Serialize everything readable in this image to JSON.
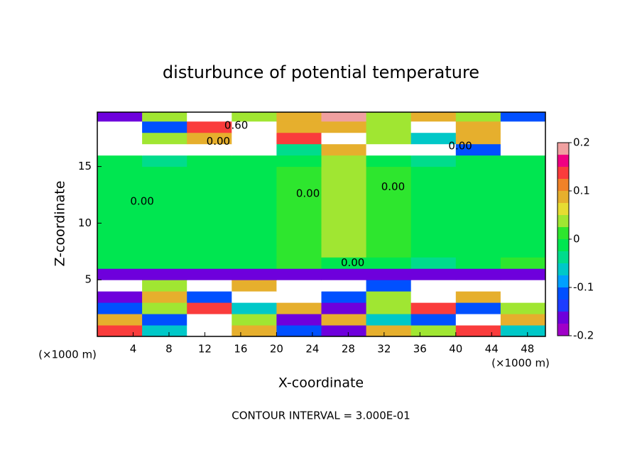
{
  "chart_data": {
    "type": "heatmap",
    "title": "disturbunce of potential temperature",
    "xlabel": "X-coordinate",
    "ylabel": "Z-coordinate",
    "xunit": "(×1000 m)",
    "note": "CONTOUR INTERVAL = 3.000E-01",
    "xlim": [
      0,
      50
    ],
    "ylim": [
      0,
      19.8
    ],
    "xticks": [
      4,
      8,
      12,
      16,
      20,
      24,
      28,
      32,
      36,
      40,
      44,
      48
    ],
    "yticks": [
      5,
      10,
      15
    ],
    "x": [
      2.5,
      7.5,
      12.5,
      17.5,
      22.5,
      27.5,
      32.5,
      37.5,
      42.5,
      47.5
    ],
    "y": [
      0.5,
      1.5,
      2.5,
      3.5,
      4.5,
      5.5,
      6.5,
      7.5,
      8.5,
      9.5,
      10.5,
      11.5,
      12.5,
      13.5,
      14.5,
      15.5,
      16.5,
      17.5,
      18.5,
      19.5
    ],
    "values": [
      [
        0.15,
        -0.05,
        0.25,
        0.1,
        -0.1,
        -0.15,
        0.1,
        0.05,
        0.15,
        -0.05
      ],
      [
        0.1,
        -0.1,
        0.25,
        0.05,
        -0.15,
        0.1,
        -0.05,
        -0.1,
        0.25,
        0.1
      ],
      [
        -0.1,
        0.05,
        0.15,
        -0.05,
        0.1,
        -0.15,
        0.05,
        0.15,
        -0.1,
        0.05
      ],
      [
        -0.15,
        0.1,
        -0.1,
        0.25,
        -0.25,
        -0.1,
        0.05,
        -0.25,
        0.1,
        -0.25
      ],
      [
        -0.25,
        0.05,
        -0.25,
        0.1,
        -0.25,
        -0.25,
        -0.1,
        -0.25,
        -0.25,
        -0.25
      ],
      [
        -0.17,
        -0.17,
        -0.17,
        -0.17,
        -0.17,
        -0.17,
        -0.17,
        -0.17,
        -0.17,
        -0.17
      ],
      [
        0,
        0,
        0,
        0,
        0.02,
        0,
        0,
        -0.03,
        0,
        0.02
      ],
      [
        0,
        0,
        0,
        0,
        0.02,
        0.03,
        0.02,
        0,
        0,
        0
      ],
      [
        0,
        0,
        0,
        0,
        0.02,
        0.03,
        0.02,
        0,
        0,
        0
      ],
      [
        0,
        0,
        0,
        0,
        0.02,
        0.03,
        0.02,
        0,
        0,
        0
      ],
      [
        0,
        0,
        0,
        0,
        0.02,
        0.03,
        0.02,
        0,
        0,
        0
      ],
      [
        0,
        0,
        0,
        0,
        0.02,
        0.03,
        0.02,
        0,
        0,
        0
      ],
      [
        0,
        0,
        0,
        0,
        0.02,
        0.03,
        0.02,
        0,
        0,
        0
      ],
      [
        0,
        0,
        0,
        0,
        0.02,
        0.03,
        0.02,
        0,
        0,
        0
      ],
      [
        0,
        0,
        0,
        0,
        0.02,
        0.03,
        0.02,
        0,
        0,
        0
      ],
      [
        0,
        -0.03,
        0,
        0,
        0,
        0.03,
        0,
        -0.03,
        0,
        0
      ],
      [
        0.25,
        0.25,
        0.25,
        0.25,
        -0.03,
        0.1,
        0.25,
        0.25,
        -0.1,
        0.25
      ],
      [
        -0.25,
        0.05,
        0.1,
        0.25,
        0.15,
        0.25,
        0.05,
        -0.05,
        0.1,
        -0.25
      ],
      [
        -0.25,
        -0.1,
        0.15,
        0.25,
        0.1,
        0.1,
        0.05,
        0.25,
        0.1,
        -0.25
      ],
      [
        -0.15,
        0.05,
        0.25,
        0.05,
        0.1,
        0.2,
        0.05,
        0.1,
        0.05,
        -0.1
      ]
    ],
    "colorbar": {
      "levels": [
        -0.2,
        -0.175,
        -0.15,
        -0.125,
        -0.1,
        -0.075,
        -0.05,
        -0.025,
        0,
        0.025,
        0.05,
        0.075,
        0.1,
        0.125,
        0.15,
        0.175,
        0.2
      ],
      "colors": [
        "#a000c8",
        "#6e00dc",
        "#1e3cff",
        "#0050ff",
        "#00a0ff",
        "#00c8c8",
        "#00dc8c",
        "#00e650",
        "#2ee62e",
        "#a0e632",
        "#e6dc32",
        "#e6af2d",
        "#f08228",
        "#fa3c3c",
        "#f00082",
        "#f0a0a0"
      ],
      "ticks": [
        -0.2,
        -0.1,
        0,
        0.1,
        0.2
      ]
    },
    "annotations": [
      {
        "text": "0.00",
        "x": 5,
        "y": 11.9
      },
      {
        "text": "0.00",
        "x": 23.5,
        "y": 12.6
      },
      {
        "text": "0.00",
        "x": 33,
        "y": 13.2
      },
      {
        "text": "0.00",
        "x": 28.5,
        "y": 6.5
      },
      {
        "text": "0.00",
        "x": 13.5,
        "y": 17.2
      },
      {
        "text": "0.60",
        "x": 15.5,
        "y": 18.6
      },
      {
        "text": "0.00",
        "x": 40.5,
        "y": 16.8
      }
    ]
  }
}
